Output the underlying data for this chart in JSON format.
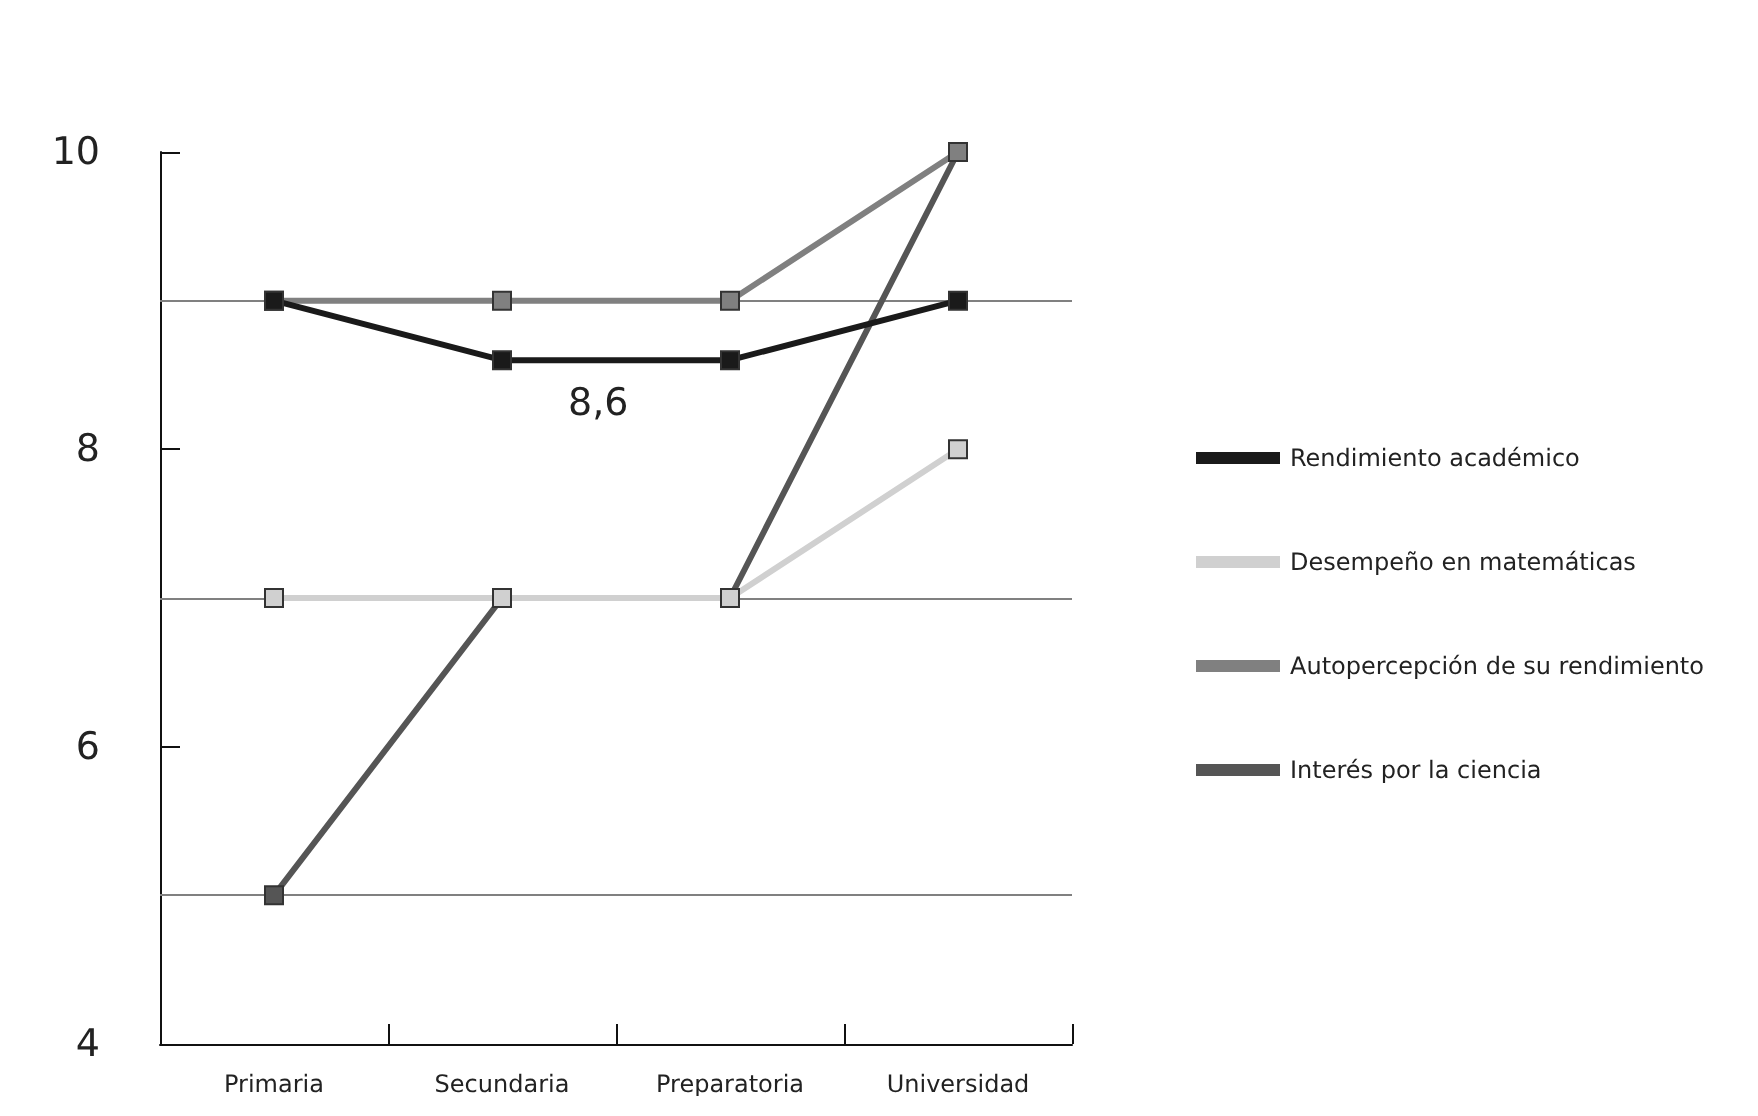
{
  "chart_data": {
    "type": "line",
    "categories": [
      "Primaria",
      "Secundaria",
      "Preparatoria",
      "Universidad"
    ],
    "series": [
      {
        "name": "Rendimiento académico",
        "color": "#1a1a1a",
        "values": [
          9,
          8.6,
          8.6,
          9
        ]
      },
      {
        "name": "Desempeño en matemáticas",
        "color": "#d0d0d0",
        "values": [
          7,
          7,
          7,
          8
        ]
      },
      {
        "name": "Autopercepción de su rendimiento",
        "color": "#808080",
        "values": [
          9,
          9,
          9,
          10
        ]
      },
      {
        "name": "Interés por la ciencia",
        "color": "#555555",
        "values": [
          5,
          7,
          7,
          10
        ]
      }
    ],
    "ylim": [
      4,
      10
    ],
    "yticks": [
      4,
      6,
      8,
      10
    ],
    "ref_lines": [
      {
        "axis": "y",
        "value": 5,
        "color": "#808080"
      },
      {
        "axis": "y",
        "value": 7,
        "color": "#808080"
      },
      {
        "axis": "y",
        "value": 9,
        "color": "#808080"
      }
    ],
    "annotations": [
      "8,6"
    ],
    "grid": false,
    "legend": "right",
    "marker": "square",
    "line_style": "solid"
  }
}
